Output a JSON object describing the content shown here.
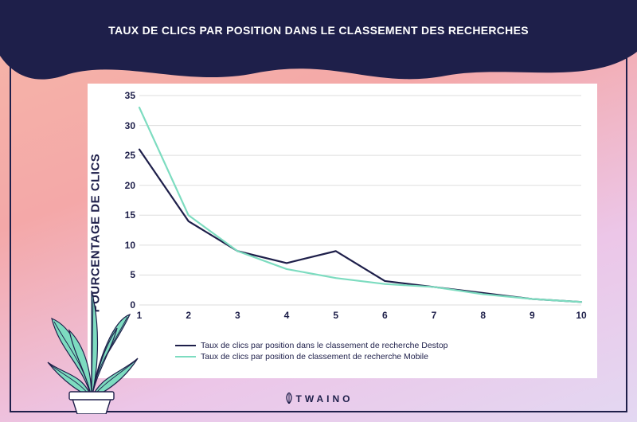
{
  "title": "TAUX DE CLICS PAR POSITION DANS LE CLASSEMENT DES RECHERCHES",
  "brand": "TWAINO",
  "colors": {
    "frame": "#1e1f4a",
    "header_blob": "#1e1f4a",
    "card_bg": "#ffffff",
    "grid": "#dddddd",
    "text": "#1e1f4a",
    "bg_gradient_from": "#f6b6a8",
    "bg_gradient_to": "#e3d8f2",
    "plant": "#7ddcc0",
    "pot_fill": "#ffffff",
    "pot_stroke": "#1e1f4a"
  },
  "chart": {
    "type": "line",
    "y_axis_title": "POURCENTAGE DE CLICS",
    "y_axis_title_fontsize": 15,
    "xlim": [
      1,
      10
    ],
    "ylim": [
      0,
      35
    ],
    "ytick_step": 5,
    "xtick_step": 1,
    "tick_fontsize": 12,
    "x_ticks": [
      1,
      2,
      3,
      4,
      5,
      6,
      7,
      8,
      9,
      10
    ],
    "y_ticks": [
      0,
      5,
      10,
      15,
      20,
      25,
      30,
      35
    ],
    "grid_horizontal": true,
    "line_width": 2.2,
    "series": [
      {
        "key": "desktop",
        "label": "Taux de clics par position dans le classement de recherche Destop",
        "color": "#1e1f4a",
        "x": [
          1,
          2,
          3,
          4,
          5,
          6,
          7,
          8,
          9,
          10
        ],
        "y": [
          26,
          14,
          9,
          7,
          9,
          4,
          3,
          2,
          1,
          0.5
        ]
      },
      {
        "key": "mobile",
        "label": "Taux de clics par position de classement de recherche Mobile",
        "color": "#7ddcc0",
        "x": [
          1,
          2,
          3,
          4,
          5,
          6,
          7,
          8,
          9,
          10
        ],
        "y": [
          33,
          15,
          9,
          6,
          4.5,
          3.5,
          3,
          1.8,
          1,
          0.5
        ]
      }
    ]
  }
}
